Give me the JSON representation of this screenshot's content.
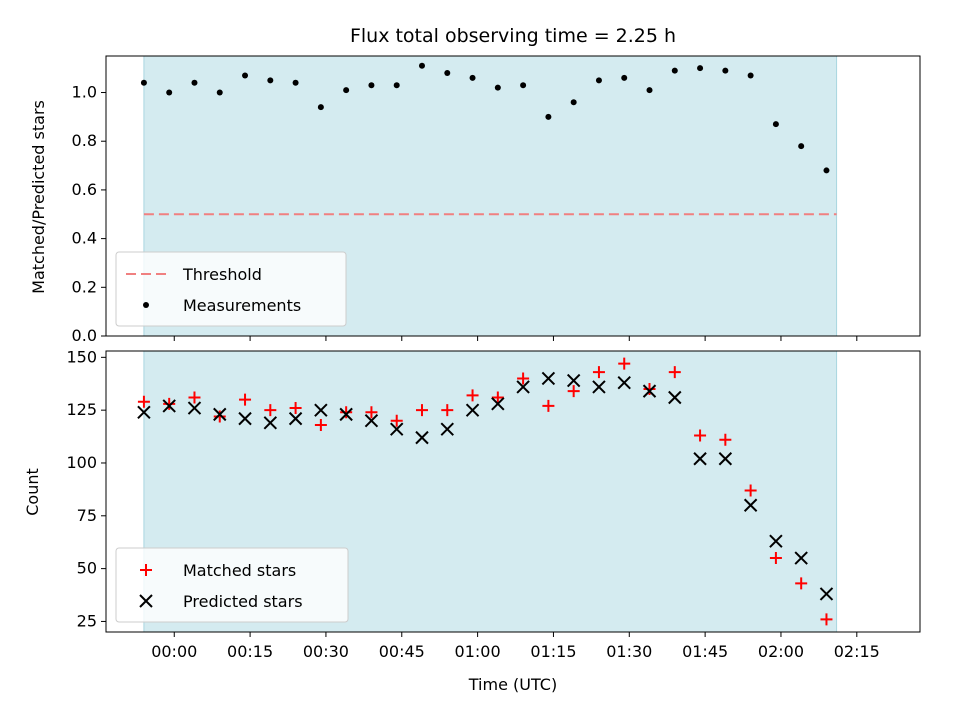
{
  "chart_data": [
    {
      "type": "scatter",
      "title": "Flux total observing time = 2.25 h",
      "xlabel": "",
      "ylabel": "Matched/Predicted stars",
      "ylim": [
        0.0,
        1.15
      ],
      "yticks": [
        "0.0",
        "0.2",
        "0.4",
        "0.6",
        "0.8",
        "1.0"
      ],
      "grid": false,
      "legend_position": "lower-left",
      "shaded_x_range": [
        "23:54",
        "02:11"
      ],
      "threshold": {
        "name": "Threshold",
        "value": 0.5,
        "color": "#f08080"
      },
      "series": [
        {
          "name": "Measurements",
          "marker": "dot",
          "color": "#000000",
          "x": [
            "23:54",
            "23:59",
            "00:04",
            "00:09",
            "00:14",
            "00:19",
            "00:24",
            "00:29",
            "00:34",
            "00:39",
            "00:44",
            "00:49",
            "00:54",
            "00:59",
            "01:04",
            "01:09",
            "01:14",
            "01:19",
            "01:24",
            "01:29",
            "01:34",
            "01:39",
            "01:44",
            "01:49",
            "01:54",
            "01:59",
            "02:04",
            "02:09"
          ],
          "y": [
            1.04,
            1.0,
            1.04,
            1.0,
            1.07,
            1.05,
            1.04,
            0.94,
            1.01,
            1.03,
            1.03,
            1.11,
            1.08,
            1.06,
            1.02,
            1.03,
            0.9,
            0.96,
            1.05,
            1.06,
            1.01,
            1.09,
            1.1,
            1.09,
            1.07,
            0.87,
            0.78,
            0.68
          ]
        }
      ]
    },
    {
      "type": "scatter",
      "title": "",
      "xlabel": "Time (UTC)",
      "ylabel": "Count",
      "ylim": [
        20,
        153
      ],
      "yticks": [
        "25",
        "50",
        "75",
        "100",
        "125",
        "150"
      ],
      "xticks": [
        "00:00",
        "00:15",
        "00:30",
        "00:45",
        "01:00",
        "01:15",
        "01:30",
        "01:45",
        "02:00",
        "02:15"
      ],
      "grid": false,
      "legend_position": "lower-left",
      "shaded_x_range": [
        "23:54",
        "02:11"
      ],
      "series": [
        {
          "name": "Matched stars",
          "marker": "plus",
          "color": "#ff0000",
          "x": [
            "23:54",
            "23:59",
            "00:04",
            "00:09",
            "00:14",
            "00:19",
            "00:24",
            "00:29",
            "00:34",
            "00:39",
            "00:44",
            "00:49",
            "00:54",
            "00:59",
            "01:04",
            "01:09",
            "01:14",
            "01:19",
            "01:24",
            "01:29",
            "01:34",
            "01:39",
            "01:44",
            "01:49",
            "01:54",
            "01:59",
            "02:04",
            "02:09"
          ],
          "y": [
            129,
            128,
            131,
            122,
            130,
            125,
            126,
            118,
            124,
            124,
            120,
            125,
            125,
            132,
            131,
            140,
            127,
            134,
            143,
            147,
            135,
            143,
            113,
            111,
            87,
            55,
            43,
            26
          ]
        },
        {
          "name": "Predicted stars",
          "marker": "x",
          "color": "#000000",
          "x": [
            "23:54",
            "23:59",
            "00:04",
            "00:09",
            "00:14",
            "00:19",
            "00:24",
            "00:29",
            "00:34",
            "00:39",
            "00:44",
            "00:49",
            "00:54",
            "00:59",
            "01:04",
            "01:09",
            "01:14",
            "01:19",
            "01:24",
            "01:29",
            "01:34",
            "01:39",
            "01:44",
            "01:49",
            "01:54",
            "01:59",
            "02:04",
            "02:09"
          ],
          "y": [
            124,
            127,
            126,
            123,
            121,
            119,
            121,
            125,
            123,
            120,
            116,
            112,
            116,
            125,
            128,
            136,
            140,
            139,
            136,
            138,
            134,
            131,
            102,
            102,
            80,
            63,
            55,
            38
          ]
        }
      ]
    }
  ],
  "colors": {
    "shade": "#d4ebf0",
    "shade_edge": "#a9d6e0"
  }
}
